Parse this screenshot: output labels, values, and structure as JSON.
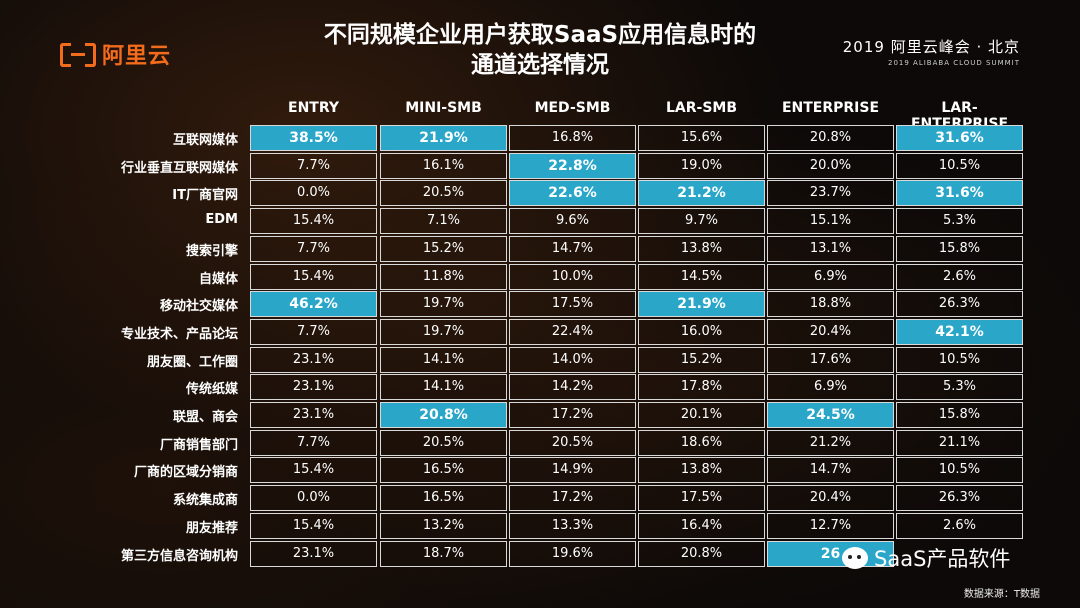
{
  "logo": {
    "text": "阿里云"
  },
  "title": {
    "line1": "不同规模企业用户获取SaaS应用信息时的",
    "line2": "通道选择情况"
  },
  "summit": {
    "line1": "2019 阿里云峰会 · 北京",
    "line2": "2019 ALIBABA CLOUD SUMMIT"
  },
  "table": {
    "columns": [
      "ENTRY",
      "MINI-SMB",
      "MED-SMB",
      "LAR-SMB",
      "ENTERPRISE",
      "LAR-ENTERPRISE"
    ],
    "rows": [
      {
        "label": "互联网媒体",
        "values": [
          "38.5%",
          "21.9%",
          "16.8%",
          "15.6%",
          "20.8%",
          "31.6%"
        ],
        "highlight": [
          true,
          true,
          false,
          false,
          false,
          true
        ]
      },
      {
        "label": "行业垂直互联网媒体",
        "values": [
          "7.7%",
          "16.1%",
          "22.8%",
          "19.0%",
          "20.0%",
          "10.5%"
        ],
        "highlight": [
          false,
          false,
          true,
          false,
          false,
          false
        ]
      },
      {
        "label": "IT厂商官网",
        "values": [
          "0.0%",
          "20.5%",
          "22.6%",
          "21.2%",
          "23.7%",
          "31.6%"
        ],
        "highlight": [
          false,
          false,
          true,
          true,
          false,
          true
        ]
      },
      {
        "label": "EDM",
        "values": [
          "15.4%",
          "7.1%",
          "9.6%",
          "9.7%",
          "15.1%",
          "5.3%"
        ],
        "highlight": [
          false,
          false,
          false,
          false,
          false,
          false
        ]
      },
      {
        "label": "搜索引擎",
        "values": [
          "7.7%",
          "15.2%",
          "14.7%",
          "13.8%",
          "13.1%",
          "15.8%"
        ],
        "highlight": [
          false,
          false,
          false,
          false,
          false,
          false
        ]
      },
      {
        "label": "自媒体",
        "values": [
          "15.4%",
          "11.8%",
          "10.0%",
          "14.5%",
          "6.9%",
          "2.6%"
        ],
        "highlight": [
          false,
          false,
          false,
          false,
          false,
          false
        ]
      },
      {
        "label": "移动社交媒体",
        "values": [
          "46.2%",
          "19.7%",
          "17.5%",
          "21.9%",
          "18.8%",
          "26.3%"
        ],
        "highlight": [
          true,
          false,
          false,
          true,
          false,
          false
        ]
      },
      {
        "label": "专业技术、产品论坛",
        "values": [
          "7.7%",
          "19.7%",
          "22.4%",
          "16.0%",
          "20.4%",
          "42.1%"
        ],
        "highlight": [
          false,
          false,
          false,
          false,
          false,
          true
        ]
      },
      {
        "label": "朋友圈、工作圈",
        "values": [
          "23.1%",
          "14.1%",
          "14.0%",
          "15.2%",
          "17.6%",
          "10.5%"
        ],
        "highlight": [
          false,
          false,
          false,
          false,
          false,
          false
        ]
      },
      {
        "label": "传统纸媒",
        "values": [
          "23.1%",
          "14.1%",
          "14.2%",
          "17.8%",
          "6.9%",
          "5.3%"
        ],
        "highlight": [
          false,
          false,
          false,
          false,
          false,
          false
        ]
      },
      {
        "label": "联盟、商会",
        "values": [
          "23.1%",
          "20.8%",
          "17.2%",
          "20.1%",
          "24.5%",
          "15.8%"
        ],
        "highlight": [
          false,
          true,
          false,
          false,
          true,
          false
        ]
      },
      {
        "label": "厂商销售部门",
        "values": [
          "7.7%",
          "20.5%",
          "20.5%",
          "18.6%",
          "21.2%",
          "21.1%"
        ],
        "highlight": [
          false,
          false,
          false,
          false,
          false,
          false
        ]
      },
      {
        "label": "厂商的区域分销商",
        "values": [
          "15.4%",
          "16.5%",
          "14.9%",
          "13.8%",
          "14.7%",
          "10.5%"
        ],
        "highlight": [
          false,
          false,
          false,
          false,
          false,
          false
        ]
      },
      {
        "label": "系统集成商",
        "values": [
          "0.0%",
          "16.5%",
          "17.2%",
          "17.5%",
          "20.4%",
          "26.3%"
        ],
        "highlight": [
          false,
          false,
          false,
          false,
          false,
          false
        ]
      },
      {
        "label": "朋友推荐",
        "values": [
          "15.4%",
          "13.2%",
          "13.3%",
          "16.4%",
          "12.7%",
          "2.6%"
        ],
        "highlight": [
          false,
          false,
          false,
          false,
          false,
          false
        ]
      },
      {
        "label": "第三方信息咨询机构",
        "values": [
          "23.1%",
          "18.7%",
          "19.6%",
          "20.8%",
          "26",
          ""
        ],
        "highlight": [
          false,
          false,
          false,
          false,
          true,
          false
        ]
      }
    ]
  },
  "watermark": {
    "text": "SaaS产品软件"
  },
  "source": {
    "text": "数据来源：T数据"
  },
  "colors": {
    "highlight": "#2aa6c9",
    "logo": "#f36b1c",
    "background": "#0c0908"
  }
}
